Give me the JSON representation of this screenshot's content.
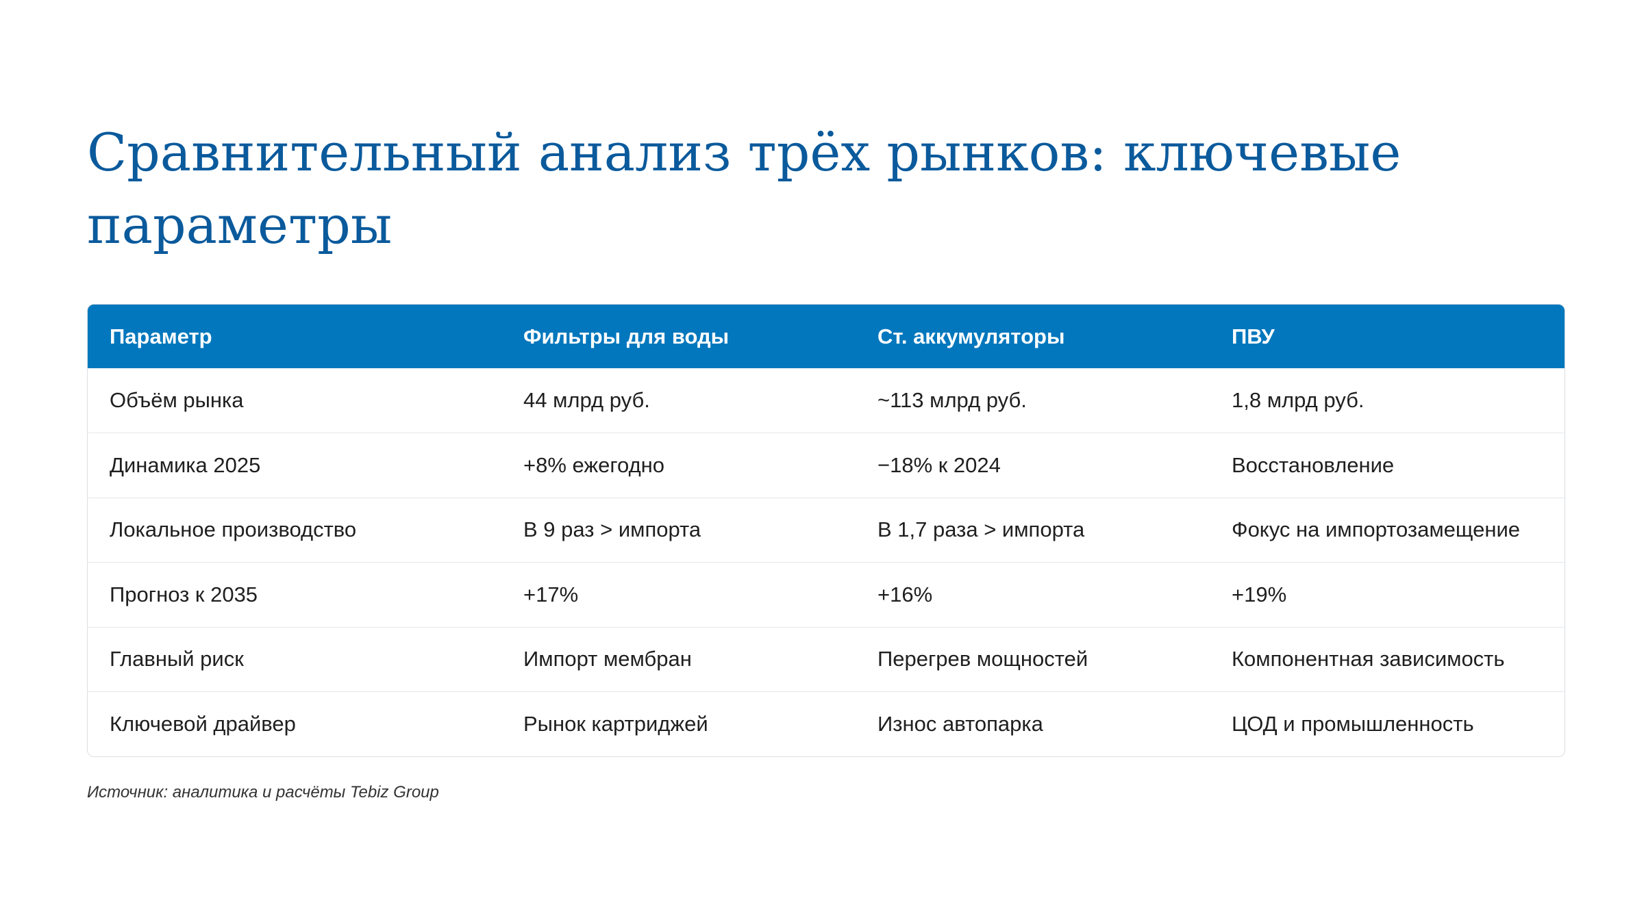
{
  "title": "Сравнительный анализ трёх рынков: ключевые параметры",
  "table": {
    "headers": [
      "Параметр",
      "Фильтры для воды",
      "Ст. аккумуляторы",
      "ПВУ"
    ],
    "rows": [
      [
        "Объём рынка",
        "44 млрд руб.",
        "~113 млрд руб.",
        "1,8 млрд руб."
      ],
      [
        "Динамика 2025",
        "+8% ежегодно",
        "−18% к 2024",
        "Восстановление"
      ],
      [
        "Локальное производство",
        "В 9 раз > импорта",
        "В 1,7 раза > импорта",
        "Фокус на импортозамещение"
      ],
      [
        "Прогноз к 2035",
        "+17%",
        "+16%",
        "+19%"
      ],
      [
        "Главный риск",
        "Импорт мембран",
        "Перегрев мощностей",
        "Компонентная зависимость"
      ],
      [
        "Ключевой драйвер",
        "Рынок картриджей",
        "Износ автопарка",
        "ЦОД и промышленность"
      ]
    ]
  },
  "source": "Источник: аналитика и расчёты Tebiz Group",
  "colors": {
    "title": "#0a5a9c",
    "header_bg": "#0277bd",
    "header_text": "#ffffff",
    "row_divider": "#e4e7ea"
  }
}
